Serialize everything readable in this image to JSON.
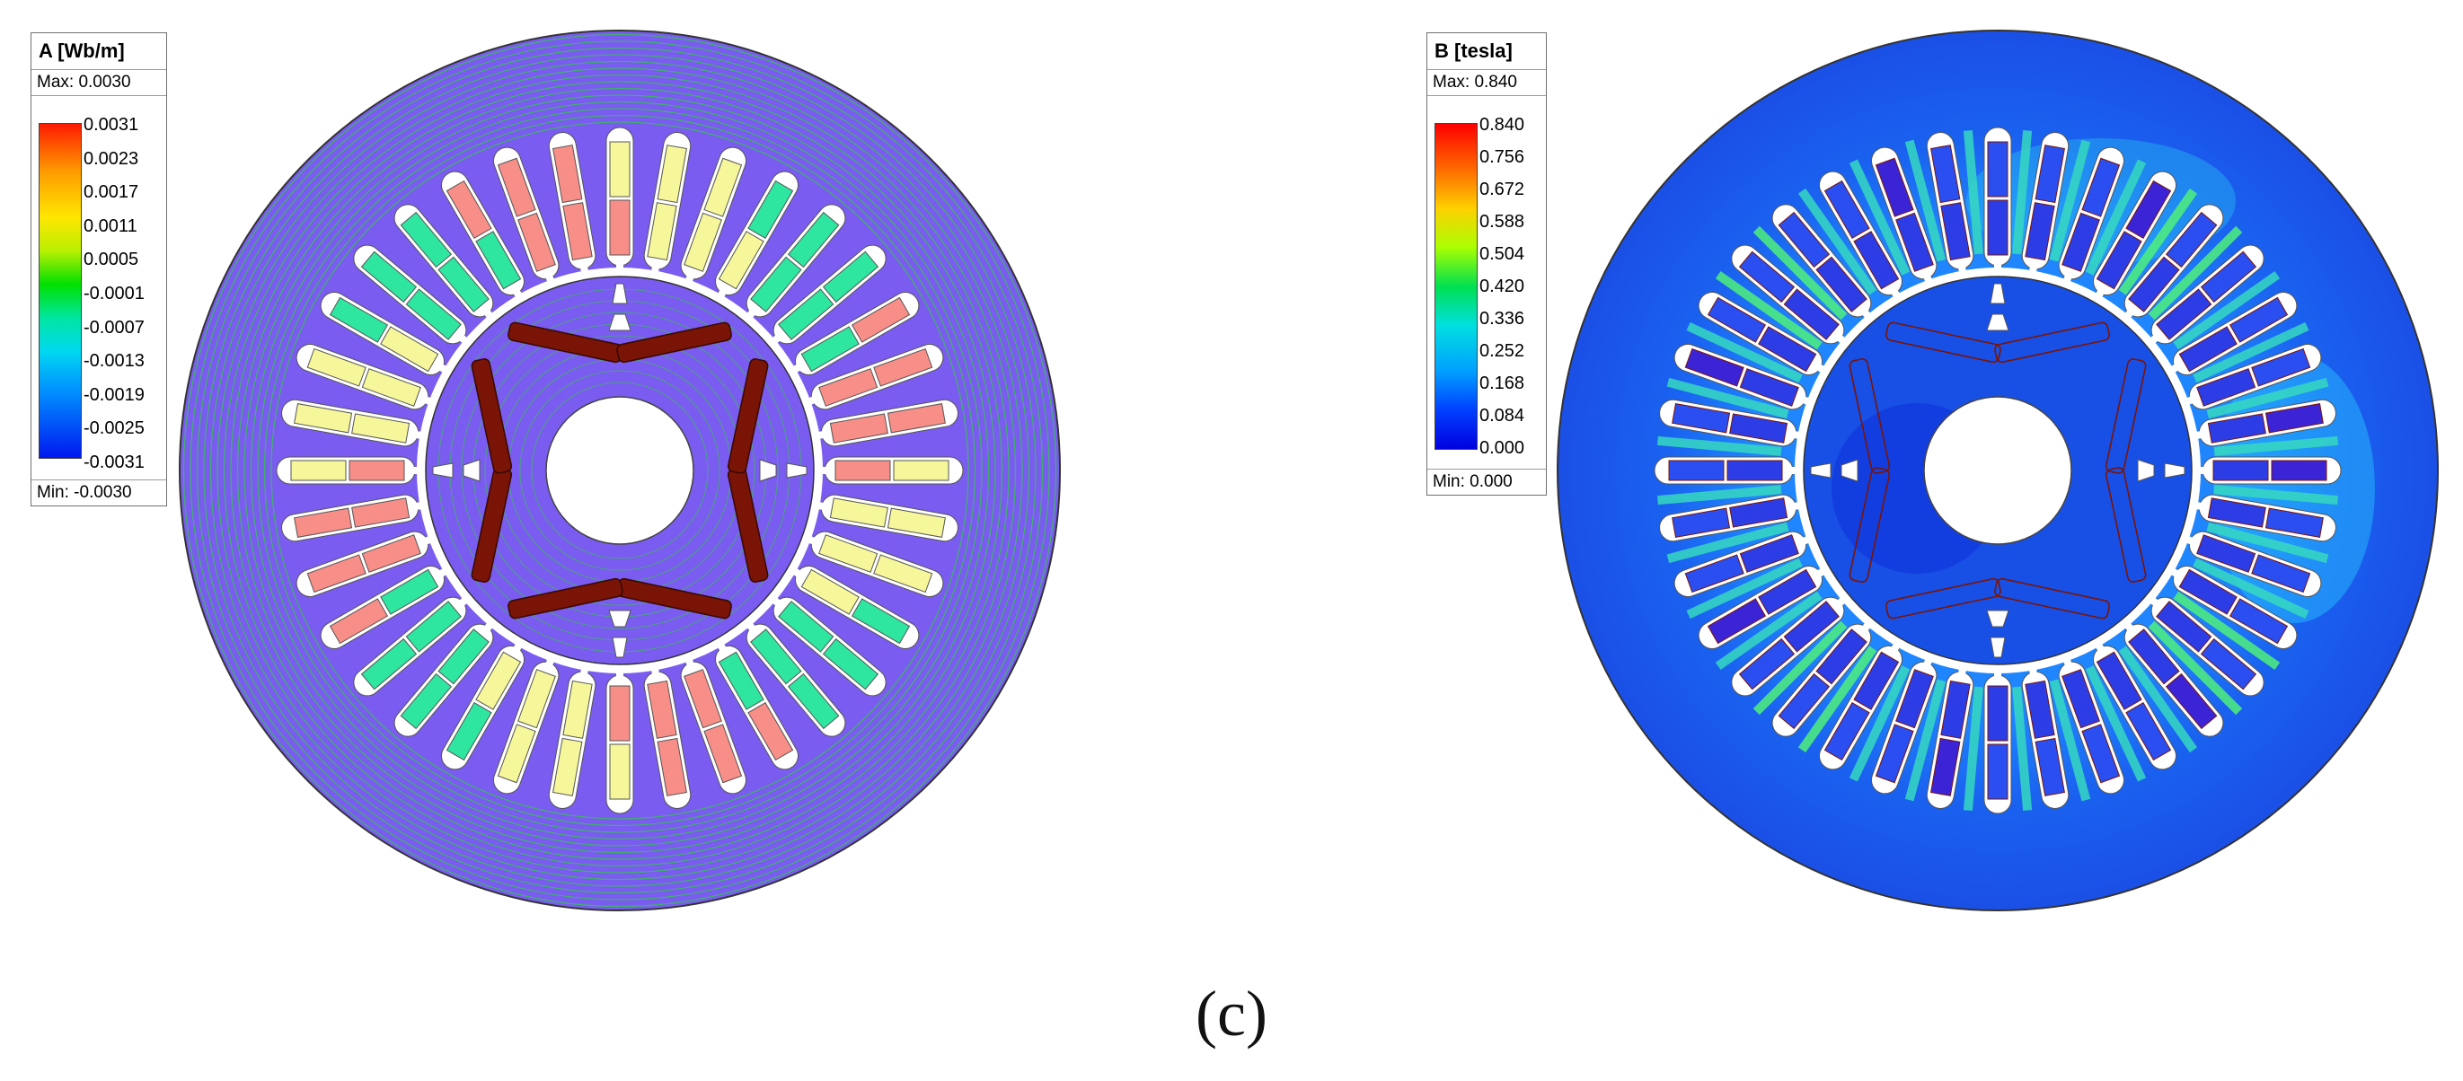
{
  "left_panel": {
    "legend": {
      "title": "A [Wb/m]",
      "max_label": "Max: 0.0030",
      "min_label": "Min: -0.0030",
      "ticks": [
        "0.0031",
        "0.0023",
        "0.0017",
        "0.0011",
        "0.0005",
        "-0.0001",
        "-0.0007",
        "-0.0013",
        "-0.0019",
        "-0.0025",
        "-0.0031"
      ]
    },
    "colors": {
      "background": "#7a5cf0",
      "rotor_bars": "#7a1406",
      "flux_lines": "#2ecc40"
    }
  },
  "right_panel": {
    "legend": {
      "title": "B [tesla]",
      "max_label": "Max: 0.840",
      "min_label": "Min: 0.000",
      "ticks": [
        "0.840",
        "0.756",
        "0.672",
        "0.588",
        "0.504",
        "0.420",
        "0.336",
        "0.252",
        "0.168",
        "0.084",
        "0.000"
      ]
    },
    "colors": {
      "stator": "#1e6cf2",
      "rotor": "#1850e6",
      "teeth": "#33d6a8"
    }
  },
  "caption": "(c)"
}
